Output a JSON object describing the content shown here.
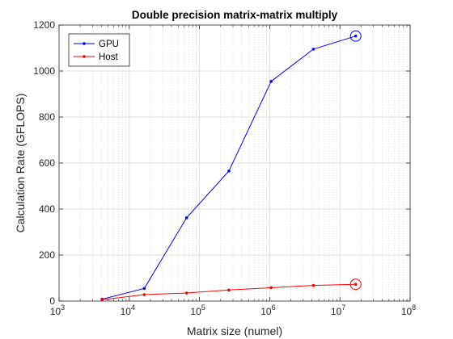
{
  "chart_data": {
    "type": "line",
    "title": "Double precision matrix-matrix multiply",
    "xlabel": "Matrix size (numel)",
    "ylabel": "Calculation Rate (GFLOPS)",
    "xscale": "log",
    "xlim": [
      1000,
      100000000
    ],
    "ylim": [
      0,
      1200
    ],
    "x_ticks": [
      {
        "base": "10",
        "exp": "3"
      },
      {
        "base": "10",
        "exp": "4"
      },
      {
        "base": "10",
        "exp": "5"
      },
      {
        "base": "10",
        "exp": "6"
      },
      {
        "base": "10",
        "exp": "7"
      },
      {
        "base": "10",
        "exp": "8"
      }
    ],
    "y_ticks": [
      "0",
      "200",
      "400",
      "600",
      "800",
      "1000",
      "1200"
    ],
    "grid": true,
    "legend_position": "top-left",
    "series": [
      {
        "name": "GPU",
        "color": "#0000ff",
        "x": [
          4096,
          16384,
          65536,
          262144,
          1048576,
          4194304,
          16777216
        ],
        "y": [
          8,
          55,
          362,
          565,
          955,
          1095,
          1152
        ],
        "highlight_last": true
      },
      {
        "name": "Host",
        "color": "#ff0000",
        "x": [
          4096,
          16384,
          65536,
          262144,
          1048576,
          4194304,
          16777216
        ],
        "y": [
          6,
          28,
          35,
          48,
          58,
          68,
          73
        ],
        "highlight_last": true
      }
    ]
  }
}
